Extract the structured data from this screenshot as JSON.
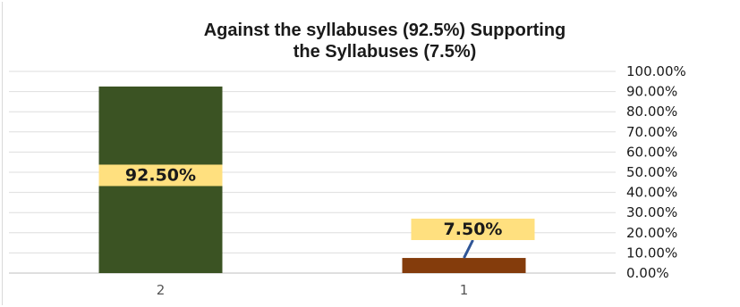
{
  "chart_data": {
    "type": "bar",
    "title_lines": [
      "Against the syllabuses  (92.5%) Supporting",
      "the Syllabuses  (7.5%)"
    ],
    "categories": [
      "2",
      "1"
    ],
    "values": [
      92.5,
      7.5
    ],
    "value_labels": [
      "92.50%",
      "7.50%"
    ],
    "bar_colors": [
      "#3b5323",
      "#843c0c"
    ],
    "label_bg_color": "#ffe07f",
    "leader_line_color": "#2f5597",
    "ylim": [
      0,
      100
    ],
    "ytick_values": [
      0,
      10,
      20,
      30,
      40,
      50,
      60,
      70,
      80,
      90,
      100
    ],
    "ytick_labels": [
      "0.00%",
      "10.00%",
      "20.00%",
      "30.00%",
      "40.00%",
      "50.00%",
      "60.00%",
      "70.00%",
      "80.00%",
      "90.00%",
      "100.00%"
    ],
    "y_axis_side": "right",
    "grid": true,
    "legend": "none"
  }
}
